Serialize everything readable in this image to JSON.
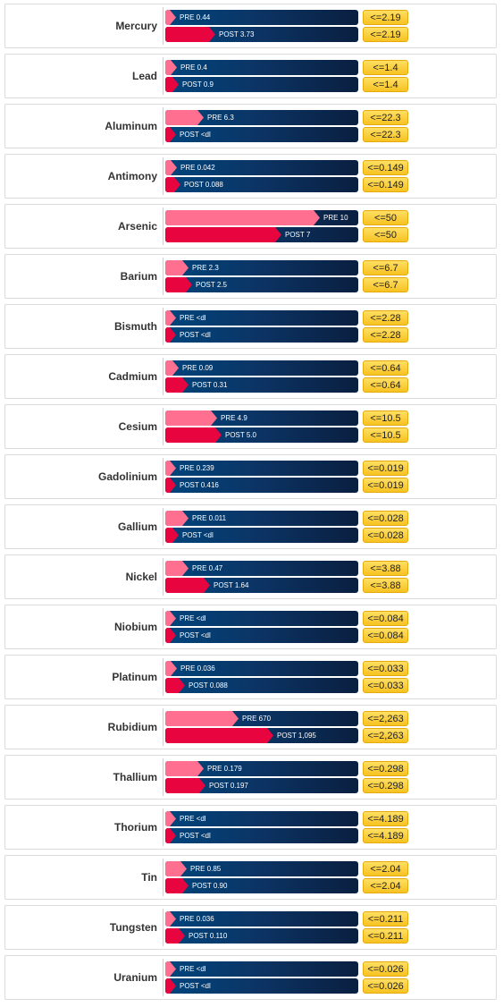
{
  "chart_data": {
    "type": "bar",
    "orientation": "horizontal",
    "series_names": [
      "PRE",
      "POST"
    ],
    "colors": {
      "pre": "#ff6f8f",
      "post": "#e8043f",
      "track": "#0b3566",
      "reference": "#f7c223"
    },
    "rows": [
      {
        "name": "Mercury",
        "pre": {
          "label": "PRE 0.44",
          "fraction": 0.04
        },
        "post": {
          "label": "POST 3.73",
          "fraction": 0.26
        },
        "ref": "<=2.19"
      },
      {
        "name": "Lead",
        "pre": {
          "label": "PRE 0.4",
          "fraction": 0.06
        },
        "post": {
          "label": "POST 0.9",
          "fraction": 0.07
        },
        "ref": "<=1.4"
      },
      {
        "name": "Aluminum",
        "pre": {
          "label": "PRE 6.3",
          "fraction": 0.2
        },
        "post": {
          "label": "POST <dl",
          "fraction": 0.05
        },
        "ref": "<=22.3"
      },
      {
        "name": "Antimony",
        "pre": {
          "label": "PRE 0.042",
          "fraction": 0.06
        },
        "post": {
          "label": "POST 0.088",
          "fraction": 0.08
        },
        "ref": "<=0.149"
      },
      {
        "name": "Arsenic",
        "pre": {
          "label": "PRE 10",
          "fraction": 0.8
        },
        "post": {
          "label": "POST 7",
          "fraction": 0.6
        },
        "ref": "<=50"
      },
      {
        "name": "Barium",
        "pre": {
          "label": "PRE 2.3",
          "fraction": 0.12
        },
        "post": {
          "label": "POST 2.5",
          "fraction": 0.14
        },
        "ref": "<=6.7"
      },
      {
        "name": "Bismuth",
        "pre": {
          "label": "PRE <dl",
          "fraction": 0.05
        },
        "post": {
          "label": "POST <dl",
          "fraction": 0.05
        },
        "ref": "<=2.28"
      },
      {
        "name": "Cadmium",
        "pre": {
          "label": "PRE 0.09",
          "fraction": 0.07
        },
        "post": {
          "label": "POST 0.31",
          "fraction": 0.12
        },
        "ref": "<=0.64"
      },
      {
        "name": "Cesium",
        "pre": {
          "label": "PRE 4.9",
          "fraction": 0.27
        },
        "post": {
          "label": "POST 5.0",
          "fraction": 0.29
        },
        "ref": "<=10.5"
      },
      {
        "name": "Gadolinium",
        "pre": {
          "label": "PRE 0.239",
          "fraction": 0.05
        },
        "post": {
          "label": "POST 0.416",
          "fraction": 0.05
        },
        "ref": "<=0.019"
      },
      {
        "name": "Gallium",
        "pre": {
          "label": "PRE 0.011",
          "fraction": 0.12
        },
        "post": {
          "label": "POST <dl",
          "fraction": 0.07
        },
        "ref": "<=0.028"
      },
      {
        "name": "Nickel",
        "pre": {
          "label": "PRE 0.47",
          "fraction": 0.12
        },
        "post": {
          "label": "POST 1.64",
          "fraction": 0.23
        },
        "ref": "<=3.88"
      },
      {
        "name": "Niobium",
        "pre": {
          "label": "PRE <dl",
          "fraction": 0.05
        },
        "post": {
          "label": "POST <dl",
          "fraction": 0.05
        },
        "ref": "<=0.084"
      },
      {
        "name": "Platinum",
        "pre": {
          "label": "PRE 0.036",
          "fraction": 0.06
        },
        "post": {
          "label": "POST 0.088",
          "fraction": 0.1
        },
        "ref": "<=0.033"
      },
      {
        "name": "Rubidium",
        "pre": {
          "label": "PRE 670",
          "fraction": 0.38
        },
        "post": {
          "label": "POST 1,095",
          "fraction": 0.56
        },
        "ref": "<=2,263"
      },
      {
        "name": "Thallium",
        "pre": {
          "label": "PRE 0.179",
          "fraction": 0.2
        },
        "post": {
          "label": "POST 0.197",
          "fraction": 0.21
        },
        "ref": "<=0.298"
      },
      {
        "name": "Thorium",
        "pre": {
          "label": "PRE <dl",
          "fraction": 0.05
        },
        "post": {
          "label": "POST <dl",
          "fraction": 0.05
        },
        "ref": "<=4.189"
      },
      {
        "name": "Tin",
        "pre": {
          "label": "PRE 0.85",
          "fraction": 0.11
        },
        "post": {
          "label": "POST 0.90",
          "fraction": 0.12
        },
        "ref": "<=2.04"
      },
      {
        "name": "Tungsten",
        "pre": {
          "label": "PRE 0.036",
          "fraction": 0.05
        },
        "post": {
          "label": "POST 0.110",
          "fraction": 0.1
        },
        "ref": "<=0.211"
      },
      {
        "name": "Uranium",
        "pre": {
          "label": "PRE <dl",
          "fraction": 0.05
        },
        "post": {
          "label": "POST <dl",
          "fraction": 0.05
        },
        "ref": "<=0.026"
      }
    ]
  }
}
